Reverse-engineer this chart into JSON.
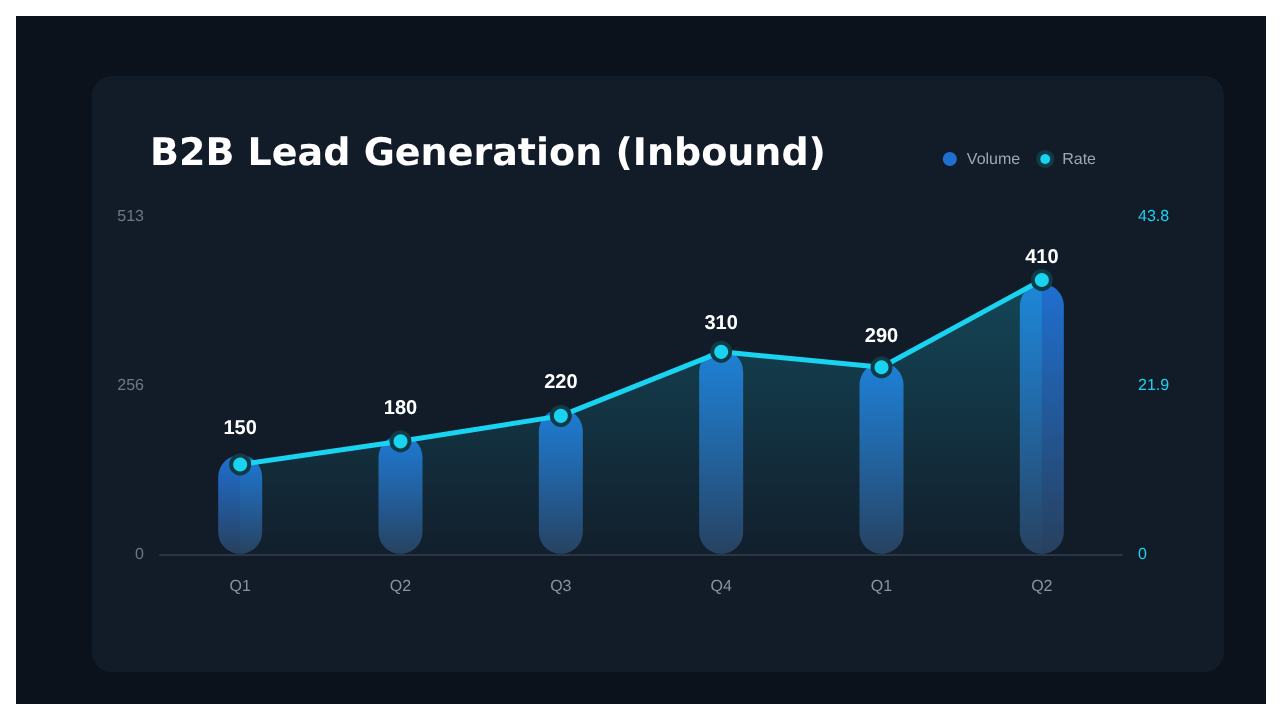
{
  "chart_data": {
    "type": "bar",
    "title": "B2B Lead Generation (Inbound)",
    "categories": [
      "Q1",
      "Q2",
      "Q3",
      "Q4",
      "Q1",
      "Q2"
    ],
    "series": [
      {
        "name": "Volume",
        "color": "#1f6fd0",
        "values": [
          150,
          180,
          220,
          310,
          290,
          410
        ],
        "value_labels": [
          "150",
          "180",
          "220",
          "310",
          "290",
          "410"
        ]
      },
      {
        "name": "Rate",
        "type": "area",
        "axis": "y2",
        "color": "#19d3f0",
        "marker": "circle",
        "values": [
          11.6,
          14.6,
          17.9,
          26.2,
          24.2,
          35.5
        ]
      }
    ],
    "ylim": [
      0,
      513
    ],
    "yticks": [
      0,
      256,
      513
    ],
    "y2lim": [
      0,
      43.8
    ],
    "y2ticks": [
      0,
      21.9,
      43.8
    ],
    "legend": "top right",
    "grid": false
  }
}
